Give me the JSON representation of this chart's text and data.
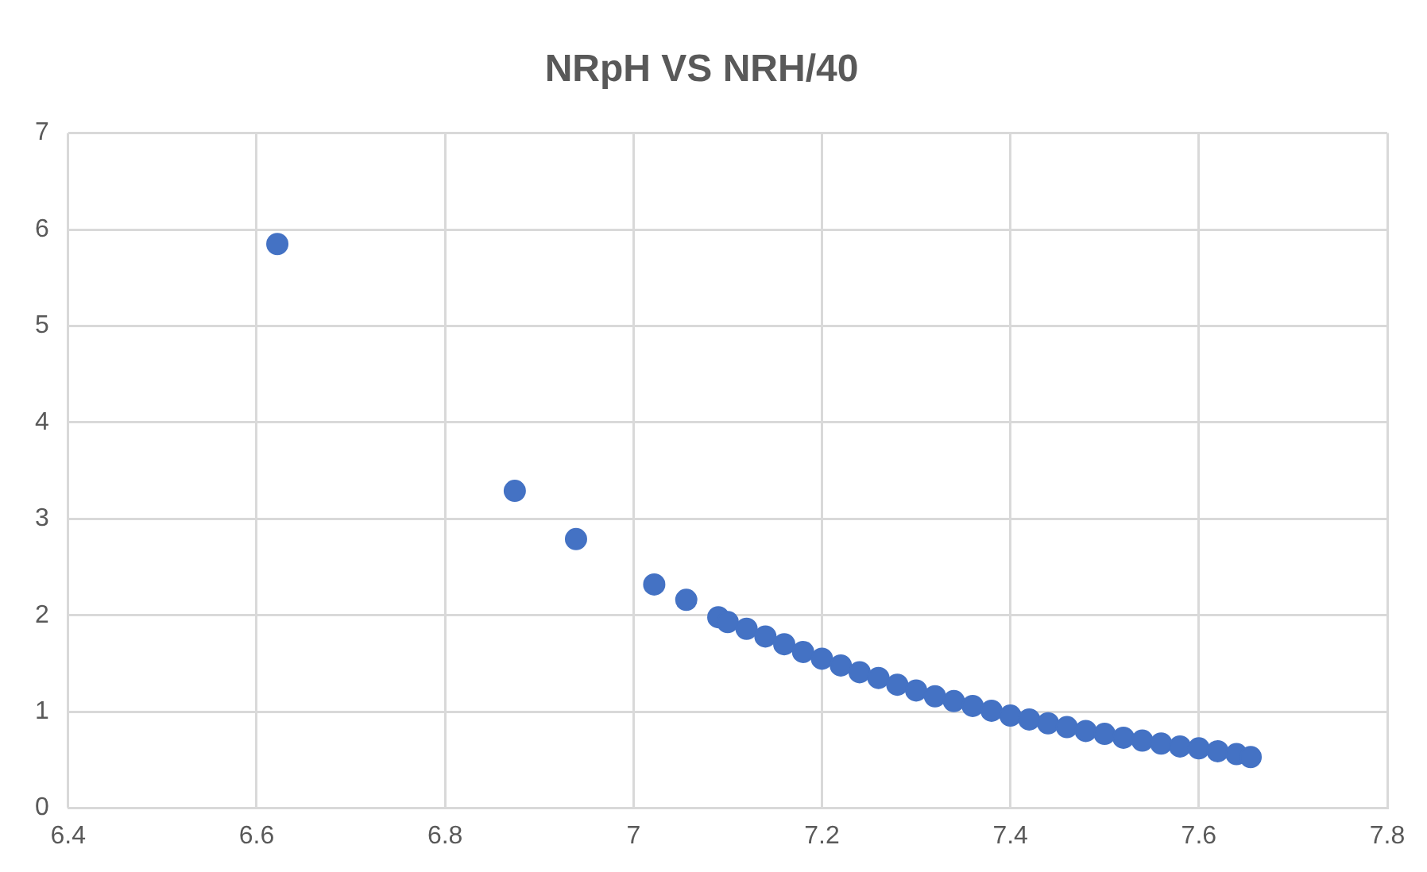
{
  "chart_data": {
    "type": "scatter",
    "title": "NRpH VS NRH/40",
    "x": [
      6.622,
      6.874,
      6.939,
      7.022,
      7.056,
      7.09,
      7.1,
      7.12,
      7.14,
      7.16,
      7.18,
      7.2,
      7.22,
      7.24,
      7.26,
      7.28,
      7.3,
      7.32,
      7.34,
      7.36,
      7.38,
      7.4,
      7.42,
      7.44,
      7.46,
      7.48,
      7.5,
      7.52,
      7.54,
      7.56,
      7.58,
      7.6,
      7.62,
      7.64,
      7.655
    ],
    "values": [
      5.85,
      3.29,
      2.79,
      2.32,
      2.16,
      1.98,
      1.93,
      1.86,
      1.78,
      1.7,
      1.62,
      1.55,
      1.48,
      1.41,
      1.35,
      1.28,
      1.22,
      1.16,
      1.11,
      1.06,
      1.01,
      0.96,
      0.92,
      0.88,
      0.84,
      0.8,
      0.77,
      0.73,
      0.7,
      0.67,
      0.64,
      0.62,
      0.59,
      0.56,
      0.53
    ],
    "color": "#4472c4",
    "marker": "circle",
    "xlim": [
      6.4,
      7.8
    ],
    "xticks": [
      6.4,
      6.6,
      6.8,
      7,
      7.2,
      7.4,
      7.6,
      7.8
    ],
    "ylim": [
      0,
      7
    ],
    "yticks": [
      0,
      1,
      2,
      3,
      4,
      5,
      6,
      7
    ],
    "grid": true
  }
}
